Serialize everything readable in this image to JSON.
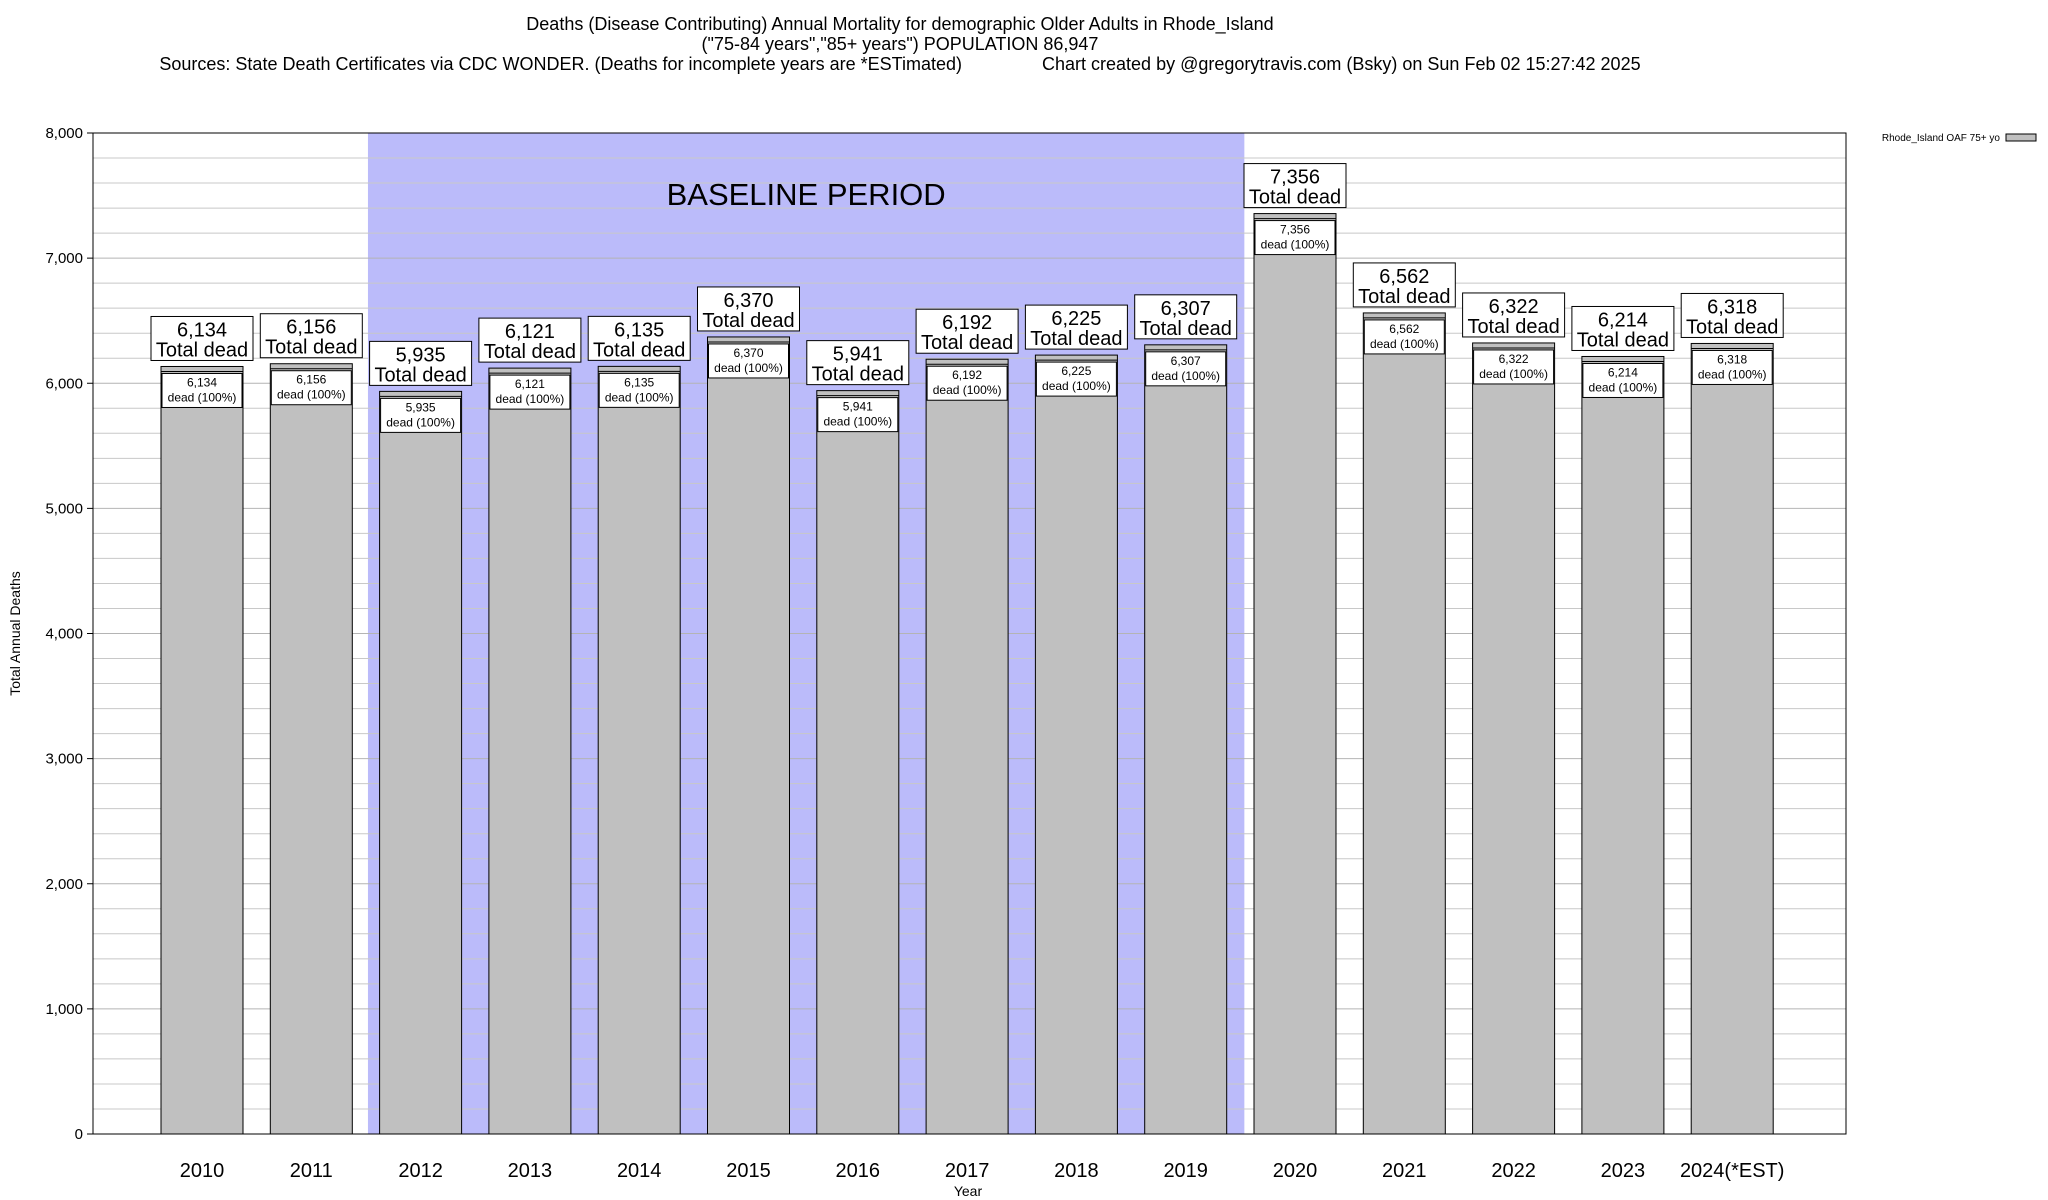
{
  "titles": {
    "line1": "Deaths (Disease Contributing) Annual Mortality for demographic Older Adults in Rhode_Island",
    "line2": "(\"75-84 years\",\"85+ years\") POPULATION 86,947",
    "line3": "Sources: State Death Certificates via CDC WONDER. (Deaths for incomplete years are *ESTimated)                Chart created by @gregorytravis.com (Bsky) on Sun Feb 02 15:27:42 2025"
  },
  "colors": {
    "bar": "#c0c0c0",
    "baseline_band": "#bbbbfa",
    "grid": "#c8c8c8"
  },
  "chart_data": {
    "type": "bar",
    "xlabel": "Year",
    "ylabel": "Total Annual Deaths",
    "ylim": [
      0,
      8000
    ],
    "yticks": [
      0,
      1000,
      2000,
      3000,
      4000,
      5000,
      6000,
      7000,
      8000
    ],
    "ytick_labels": [
      "0",
      "1,000",
      "2,000",
      "3,000",
      "4,000",
      "5,000",
      "6,000",
      "7,000",
      "8,000"
    ],
    "grid": "horizontal",
    "categories": [
      "2010",
      "2011",
      "2012",
      "2013",
      "2014",
      "2015",
      "2016",
      "2017",
      "2018",
      "2019",
      "2020",
      "2021",
      "2022",
      "2023",
      "2024(*EST)"
    ],
    "series": [
      {
        "name": "Rhode_Island OAF 75+ yo",
        "values": [
          6134,
          6156,
          5935,
          6121,
          6135,
          6370,
          5941,
          6192,
          6225,
          6307,
          7356,
          6562,
          6322,
          6214,
          6318
        ]
      }
    ],
    "value_labels": [
      "6,134",
      "6,156",
      "5,935",
      "6,121",
      "6,135",
      "6,370",
      "5,941",
      "6,192",
      "6,225",
      "6,307",
      "7,356",
      "6,562",
      "6,322",
      "6,214",
      "6,318"
    ],
    "total_suffix": "Total dead",
    "inner_suffix": "dead (100%)",
    "baseline_period": {
      "label": "BASELINE PERIOD",
      "from": "2012",
      "to": "2019"
    },
    "legend_position": "top-right"
  }
}
